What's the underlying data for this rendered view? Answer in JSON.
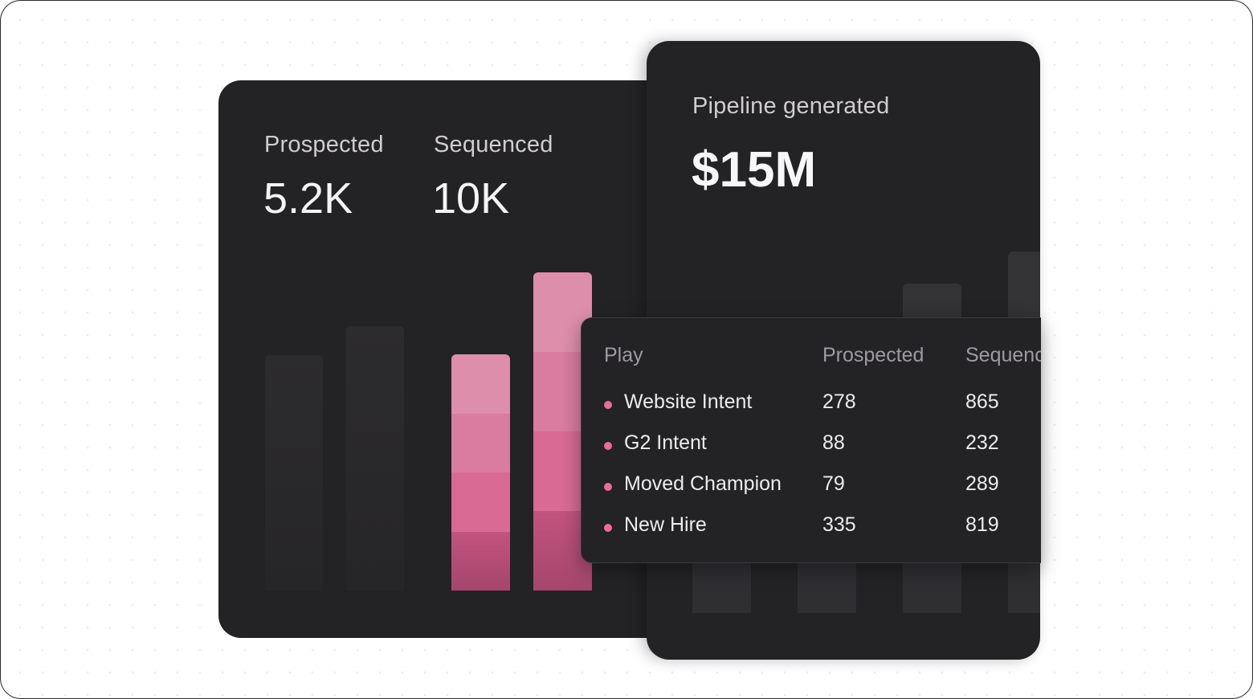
{
  "stats": {
    "prospected_label": "Prospected",
    "prospected_value": "5.2K",
    "sequenced_label": "Sequenced",
    "sequenced_value": "10K",
    "pipeline_label": "Pipeline generated",
    "pipeline_value": "$15M"
  },
  "table": {
    "headers": [
      "Play",
      "Prospected",
      "Sequenced"
    ],
    "rows": [
      {
        "play": "Website Intent",
        "prospected": "278",
        "sequenced": "865"
      },
      {
        "play": "G2 Intent",
        "prospected": "88",
        "sequenced": "232"
      },
      {
        "play": "Moved Champion",
        "prospected": "79",
        "sequenced": "289"
      },
      {
        "play": "New Hire",
        "prospected": "335",
        "sequenced": "819"
      }
    ]
  },
  "colors": {
    "card_bg": "#232224",
    "accent_pink": "#ec6c98",
    "segment_colors": [
      "#dd8eab",
      "#d97c9f",
      "#d86a93",
      "#b94f79"
    ]
  }
}
